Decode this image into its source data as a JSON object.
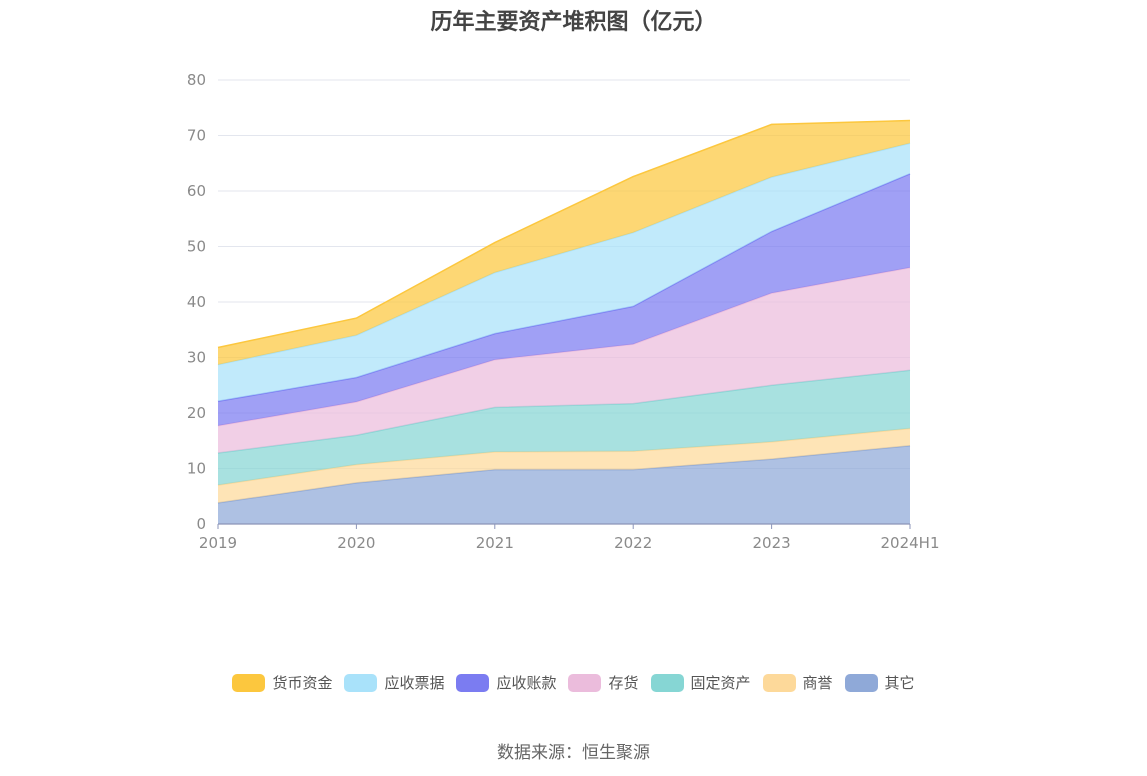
{
  "chart_data": {
    "type": "area",
    "stacked": true,
    "title": "历年主要资产堆积图（亿元）",
    "categories": [
      "2019",
      "2020",
      "2021",
      "2022",
      "2023",
      "2024H1"
    ],
    "ylim": [
      0,
      80
    ],
    "yticks": [
      0,
      10,
      20,
      30,
      40,
      50,
      60,
      70,
      80
    ],
    "grid": true,
    "legend_position": "bottom",
    "series": [
      {
        "name": "其它",
        "color": "#8fa9d8",
        "values": [
          3.8,
          7.4,
          9.8,
          9.8,
          11.7,
          14.1
        ]
      },
      {
        "name": "商誉",
        "color": "#fdd99a",
        "values": [
          3.2,
          3.3,
          3.2,
          3.3,
          3.1,
          3.1
        ]
      },
      {
        "name": "固定资产",
        "color": "#86d6d4",
        "values": [
          5.8,
          5.3,
          8.0,
          8.6,
          10.2,
          10.5
        ]
      },
      {
        "name": "存货",
        "color": "#ebbcdc",
        "values": [
          4.9,
          6.0,
          8.6,
          10.7,
          16.6,
          18.5
        ]
      },
      {
        "name": "应收账款",
        "color": "#7b7cf1",
        "values": [
          4.4,
          4.4,
          4.7,
          6.8,
          11.1,
          16.9
        ]
      },
      {
        "name": "应收票据",
        "color": "#a9e2fa",
        "values": [
          6.6,
          7.6,
          11.0,
          13.3,
          9.8,
          5.5
        ]
      },
      {
        "name": "货币资金",
        "color": "#fcc73e",
        "values": [
          3.1,
          3.1,
          5.4,
          10.1,
          9.5,
          4.1
        ]
      }
    ]
  },
  "legend_order": [
    "货币资金",
    "应收票据",
    "应收账款",
    "存货",
    "固定资产",
    "商誉",
    "其它"
  ],
  "source": "数据来源：恒生聚源"
}
